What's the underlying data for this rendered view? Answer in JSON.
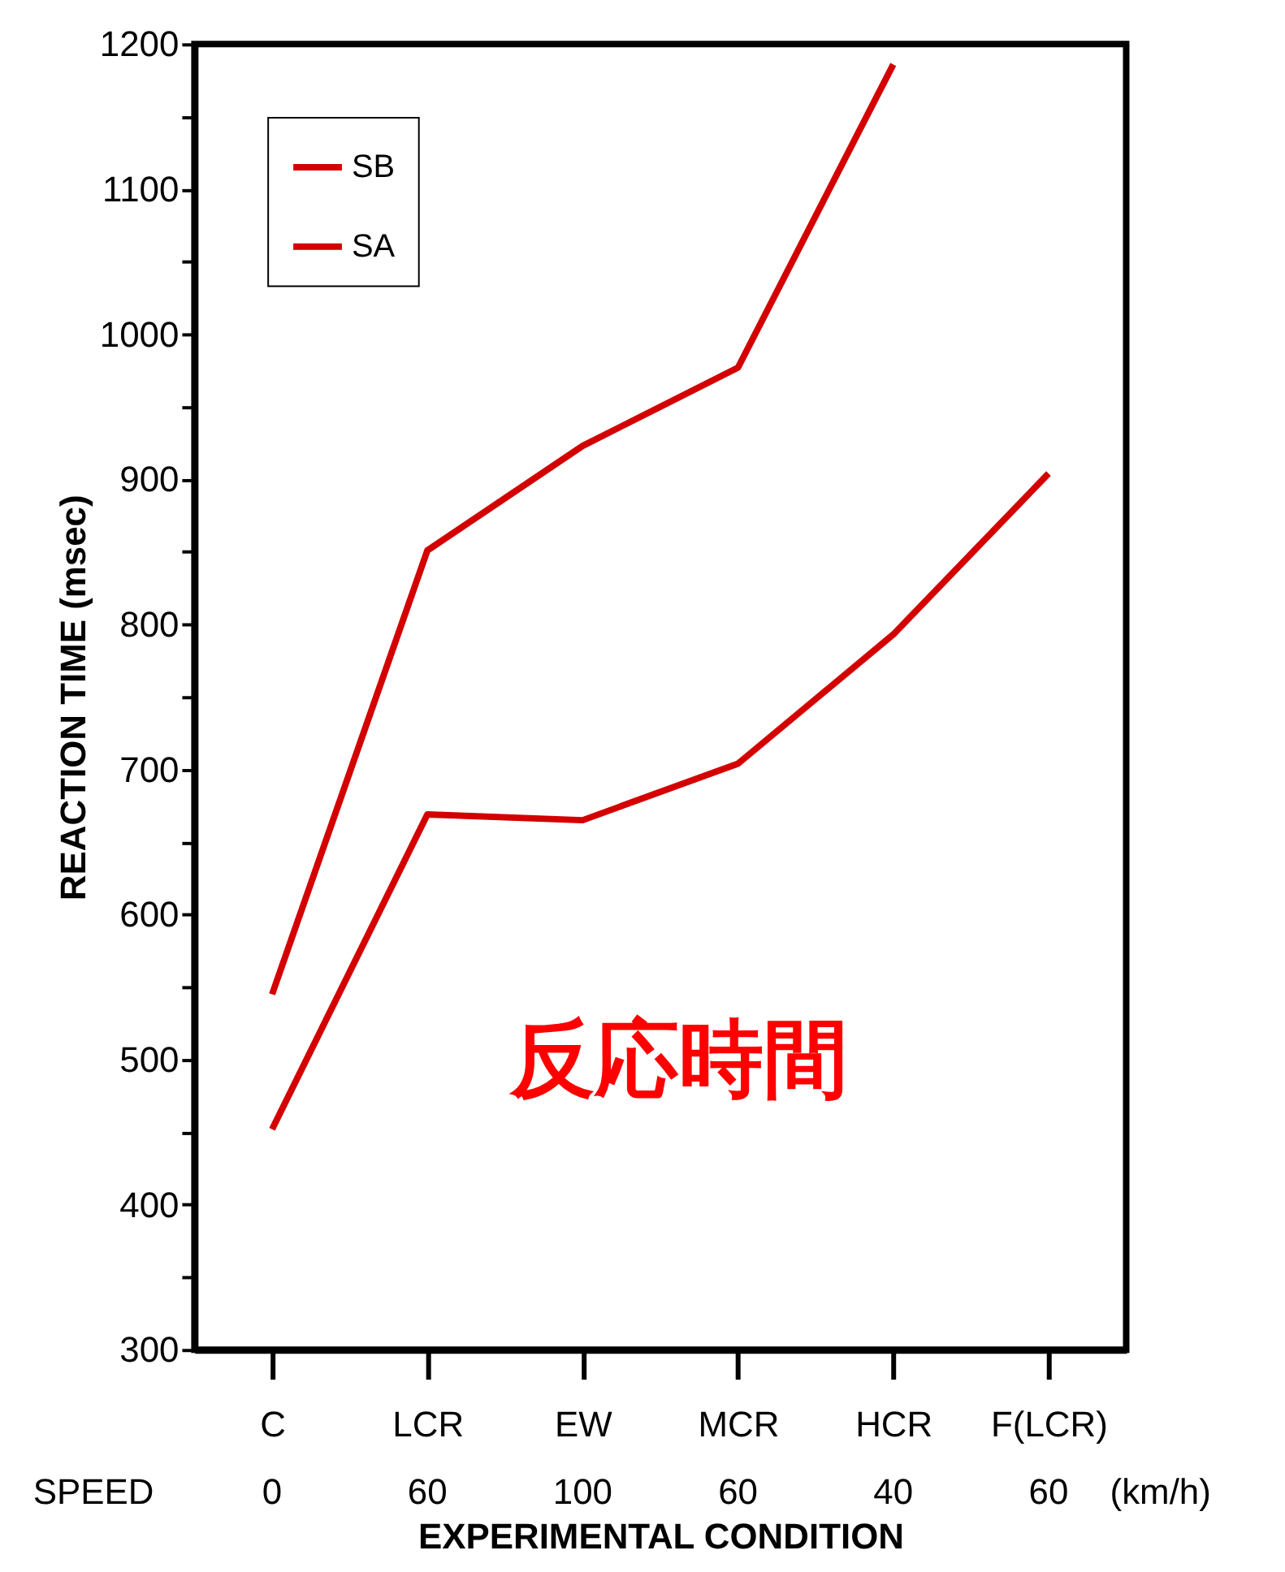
{
  "chart_data": {
    "type": "line",
    "xlabel": "EXPERIMENTAL CONDITION",
    "ylabel": "REACTION TIME (msec)",
    "categories": [
      "C",
      "LCR",
      "EW",
      "MCR",
      "HCR",
      "F(LCR)"
    ],
    "series": [
      {
        "name": "SB",
        "color": "#d40000",
        "values": [
          545,
          851,
          923,
          977,
          1186,
          null
        ]
      },
      {
        "name": "SA",
        "color": "#d40000",
        "values": [
          452,
          669,
          665,
          704,
          793,
          904
        ]
      }
    ],
    "ylim": [
      300,
      1200
    ],
    "yticks": [
      300,
      {
        "value": 350,
        "label": null
      },
      400,
      {
        "value": 450,
        "label": null
      },
      500,
      {
        "value": 550,
        "label": null
      },
      600,
      {
        "value": 650,
        "label": null
      },
      700,
      {
        "value": 750,
        "label": null
      },
      800,
      {
        "value": 850,
        "label": null
      },
      900,
      {
        "value": 950,
        "label": null
      },
      1000,
      {
        "value": 1050,
        "label": null
      },
      1100,
      {
        "value": 1150,
        "label": null
      },
      1200
    ],
    "annotations": [
      "反応時間",
      "SPEED",
      "0",
      "60",
      "100",
      "60",
      "40",
      "60",
      "(km/h)"
    ],
    "grid": false,
    "legend": "top left",
    "line_style": "solid"
  }
}
